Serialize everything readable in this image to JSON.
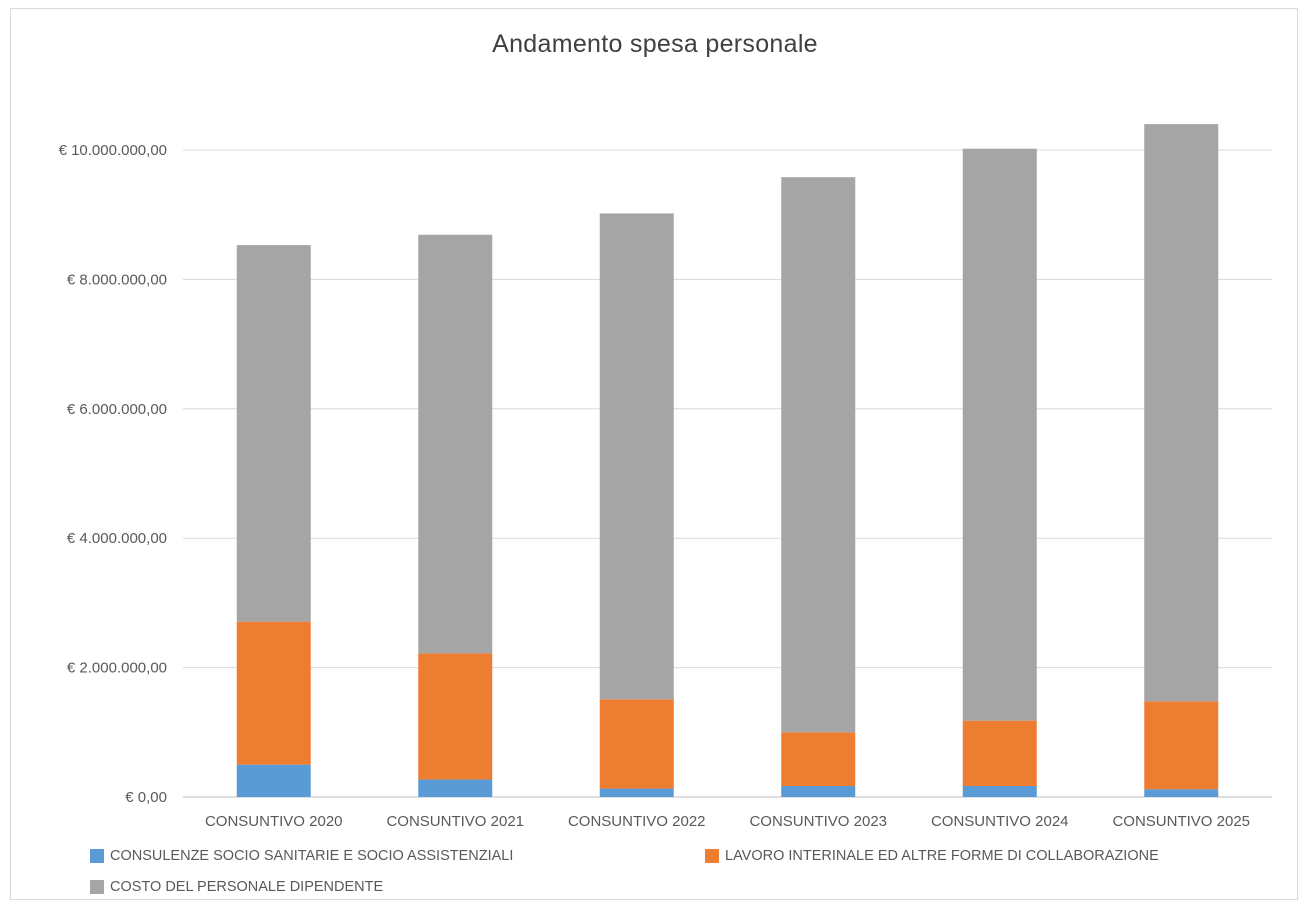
{
  "chart_data": {
    "type": "bar",
    "stacked": true,
    "title": "Andamento spesa personale",
    "categories": [
      "CONSUNTIVO 2020",
      "CONSUNTIVO 2021",
      "CONSUNTIVO 2022",
      "CONSUNTIVO 2023",
      "CONSUNTIVO 2024",
      "CONSUNTIVO 2025"
    ],
    "series": [
      {
        "name": "CONSULENZE SOCIO SANITARIE E SOCIO ASSISTENZIALI",
        "color": "#5b9bd5",
        "values": [
          500000,
          270000,
          130000,
          170000,
          170000,
          120000
        ]
      },
      {
        "name": "LAVORO INTERINALE ED ALTRE FORME DI COLLABORAZIONE",
        "color": "#ed7d31",
        "values": [
          2210000,
          1950000,
          1380000,
          830000,
          1010000,
          1360000
        ]
      },
      {
        "name": "COSTO DEL PERSONALE DIPENDENTE",
        "color": "#a5a5a5",
        "values": [
          5820000,
          6470000,
          7510000,
          8580000,
          8840000,
          8920000
        ]
      }
    ],
    "ylim": [
      0,
      10000000
    ],
    "y_tick_labels": [
      "€ 0,00",
      "€ 2.000.000,00",
      "€ 4.000.000,00",
      "€ 6.000.000,00",
      "€ 8.000.000,00",
      "€ 10.000.000,00"
    ],
    "y_tick_values": [
      0,
      2000000,
      4000000,
      6000000,
      8000000,
      10000000
    ],
    "grid": true,
    "legend_position": "bottom",
    "xlabel": "",
    "ylabel": ""
  }
}
